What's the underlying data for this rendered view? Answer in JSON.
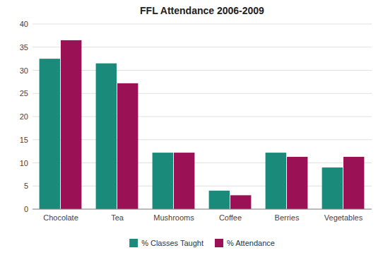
{
  "chart_data": {
    "type": "bar",
    "title": "FFL Attendance 2006-2009",
    "categories": [
      "Chocolate",
      "Tea",
      "Mushrooms",
      "Coffee",
      "Berries",
      "Vegetables"
    ],
    "series": [
      {
        "name": "% Classes Taught",
        "color": "#1A8A7A",
        "values": [
          32.5,
          31.5,
          12.2,
          4.0,
          12.2,
          9.0
        ]
      },
      {
        "name": "% Attendance",
        "color": "#9B1155",
        "values": [
          36.5,
          27.2,
          12.2,
          3.0,
          11.3,
          11.3
        ]
      }
    ],
    "ylim": [
      0,
      40
    ],
    "yticks": [
      0,
      5,
      10,
      15,
      20,
      25,
      30,
      35,
      40
    ],
    "grid": true,
    "legend": "bottom"
  }
}
